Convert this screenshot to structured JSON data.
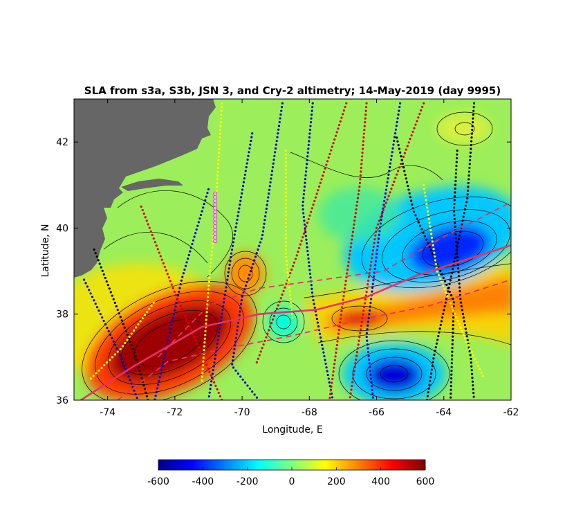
{
  "chart_data": {
    "type": "heatmap",
    "title": "SLA from s3a, S3b, JSN 3, and Cry-2 altimetry; 14-May-2019 (day 9995)",
    "xlabel": "Longitude, E",
    "ylabel": "Latitude, N",
    "xlim": [
      -75,
      -62
    ],
    "ylim": [
      36,
      43
    ],
    "xticks": [
      -74,
      -72,
      -70,
      -68,
      -66,
      -64,
      -62
    ],
    "yticks": [
      36,
      38,
      40,
      42
    ],
    "colorbar": {
      "range": [
        -600,
        600
      ],
      "ticks": [
        -600,
        -400,
        -200,
        0,
        200,
        400,
        600
      ],
      "colormap": "jet"
    },
    "land_color": "#666666",
    "features": [
      {
        "type": "warm-core anomaly",
        "lon": -72.2,
        "lat": 37.1,
        "value": 600
      },
      {
        "type": "warm anomaly",
        "lon": -66.2,
        "lat": 37.9,
        "value": 380
      },
      {
        "type": "warm anomaly",
        "lon": -63.3,
        "lat": 38.4,
        "value": 350
      },
      {
        "type": "warm eddy",
        "lon": -69.8,
        "lat": 38.9,
        "value": 300
      },
      {
        "type": "cold eddy",
        "lon": -68.7,
        "lat": 37.85,
        "value": -180
      },
      {
        "type": "cold-core anomaly",
        "lon": -63.8,
        "lat": 39.5,
        "value": -520
      },
      {
        "type": "cold-core anomaly",
        "lon": -65.3,
        "lat": 36.6,
        "value": -580
      }
    ],
    "tracks": [
      {
        "color": "#0000cc",
        "points": [
          [
            -74.7,
            38.8
          ],
          [
            -73.6,
            37.0
          ],
          [
            -73.1,
            36.0
          ]
        ]
      },
      {
        "color": "#0000cc",
        "points": [
          [
            -71.0,
            40.9
          ],
          [
            -71.8,
            38.8
          ],
          [
            -72.6,
            36.0
          ]
        ]
      },
      {
        "color": "#0000cc",
        "points": [
          [
            -69.7,
            42.2
          ],
          [
            -70.3,
            39.5
          ],
          [
            -71.0,
            36.0
          ]
        ]
      },
      {
        "color": "#0000cc",
        "points": [
          [
            -68.8,
            42.9
          ],
          [
            -69.4,
            39.8
          ],
          [
            -70.0,
            38.4
          ],
          [
            -70.3,
            36.8
          ],
          [
            -69.5,
            36.0
          ]
        ]
      },
      {
        "color": "#0000cc",
        "points": [
          [
            -67.9,
            42.9
          ],
          [
            -68.2,
            40.5
          ],
          [
            -67.9,
            38.4
          ],
          [
            -67.3,
            36.0
          ]
        ]
      },
      {
        "color": "#0000cc",
        "points": [
          [
            -65.3,
            42.9
          ],
          [
            -65.9,
            40.0
          ],
          [
            -66.3,
            37.5
          ],
          [
            -66.1,
            36.0
          ]
        ]
      },
      {
        "color": "#dd0000",
        "points": [
          [
            -73.0,
            40.5
          ],
          [
            -72.0,
            38.5
          ],
          [
            -70.6,
            36.0
          ]
        ]
      },
      {
        "color": "#dd0000",
        "points": [
          [
            -66.9,
            42.9
          ],
          [
            -68.4,
            39.3
          ],
          [
            -69.6,
            36.8
          ]
        ]
      },
      {
        "color": "#dd0000",
        "points": [
          [
            -66.3,
            42.9
          ],
          [
            -66.5,
            41.0
          ],
          [
            -67.0,
            38.3
          ],
          [
            -67.4,
            36.0
          ]
        ]
      },
      {
        "color": "#dd0000",
        "points": [
          [
            -64.6,
            42.9
          ],
          [
            -66.0,
            40.0
          ],
          [
            -66.8,
            36.0
          ]
        ]
      },
      {
        "color": "#000000",
        "points": [
          [
            -74.4,
            39.5
          ],
          [
            -73.9,
            38.5
          ],
          [
            -73.2,
            37.1
          ],
          [
            -72.8,
            36.0
          ]
        ]
      },
      {
        "color": "#000000",
        "points": [
          [
            -65.4,
            42.1
          ],
          [
            -64.9,
            40.4
          ],
          [
            -63.7,
            38.3
          ],
          [
            -63.8,
            36.0
          ]
        ]
      },
      {
        "color": "#000000",
        "points": [
          [
            -63.6,
            41.8
          ],
          [
            -63.7,
            40.4
          ],
          [
            -63.5,
            38.3
          ],
          [
            -63.2,
            37.0
          ],
          [
            -63.1,
            36.0
          ]
        ]
      },
      {
        "color": "#000000",
        "points": [
          [
            -63.1,
            42.9
          ],
          [
            -63.3,
            40.7
          ],
          [
            -63.8,
            38.8
          ],
          [
            -64.3,
            37.0
          ],
          [
            -64.5,
            36.0
          ]
        ]
      },
      {
        "color": "#ffff00",
        "points": [
          [
            -74.5,
            36.5
          ],
          [
            -73.6,
            37.2
          ],
          [
            -72.6,
            38.3
          ]
        ]
      },
      {
        "color": "#ffff00",
        "points": [
          [
            -70.6,
            42.9
          ],
          [
            -70.8,
            40.3
          ],
          [
            -71.0,
            38.6
          ],
          [
            -71.2,
            36.4
          ]
        ]
      },
      {
        "color": "#ffff00",
        "points": [
          [
            -68.7,
            41.8
          ],
          [
            -68.7,
            39.4
          ],
          [
            -68.5,
            37.9
          ]
        ]
      },
      {
        "color": "#ffff00",
        "points": [
          [
            -64.6,
            41.0
          ],
          [
            -64.2,
            39.0
          ],
          [
            -63.4,
            37.5
          ],
          [
            -62.8,
            36.5
          ]
        ]
      }
    ],
    "front": [
      [
        -74.8,
        36.0
      ],
      [
        -73.2,
        36.8
      ],
      [
        -71.2,
        37.7
      ],
      [
        -69.5,
        38.0
      ],
      [
        -67.8,
        38.1
      ],
      [
        -66.3,
        38.4
      ],
      [
        -64.8,
        38.9
      ],
      [
        -63.2,
        39.3
      ],
      [
        -62.0,
        39.6
      ]
    ],
    "front_dashed_north": [
      [
        -72.5,
        37.0
      ],
      [
        -71.0,
        38.2
      ],
      [
        -69.5,
        38.6
      ],
      [
        -67.6,
        38.8
      ],
      [
        -65.8,
        39.0
      ],
      [
        -64.0,
        39.8
      ],
      [
        -62.0,
        40.6
      ]
    ],
    "front_dashed_south": [
      [
        -73.7,
        36.0
      ],
      [
        -72.2,
        36.9
      ],
      [
        -70.5,
        37.2
      ],
      [
        -68.5,
        37.5
      ],
      [
        -66.3,
        37.9
      ],
      [
        -64.4,
        38.2
      ],
      [
        -62.0,
        38.8
      ]
    ],
    "magenta_section": [
      [
        -70.8,
        40.8
      ],
      [
        -70.8,
        39.7
      ]
    ]
  }
}
